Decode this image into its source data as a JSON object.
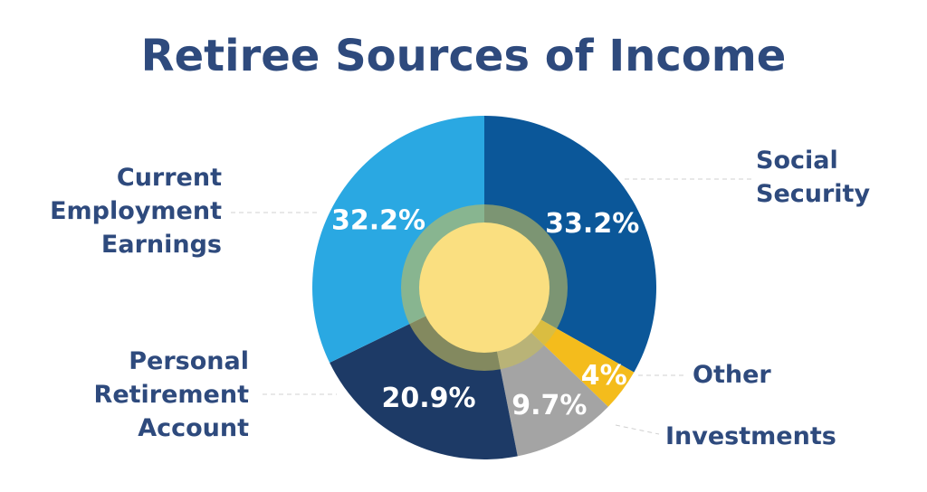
{
  "chart_data": {
    "type": "donut",
    "title": "Retiree Sources of Income",
    "categories": [
      "Social Security",
      "Other",
      "Investments",
      "Personal Retirement Account",
      "Current Employment Earnings"
    ],
    "values": [
      33.2,
      4,
      9.7,
      20.9,
      32.2
    ],
    "value_labels": [
      "33.2%",
      "4%",
      "9.7%",
      "20.9%",
      "32.2%"
    ],
    "colors": [
      "#0b5799",
      "#f4bc1c",
      "#a4a4a4",
      "#1d3a66",
      "#2aa8e2"
    ]
  }
}
